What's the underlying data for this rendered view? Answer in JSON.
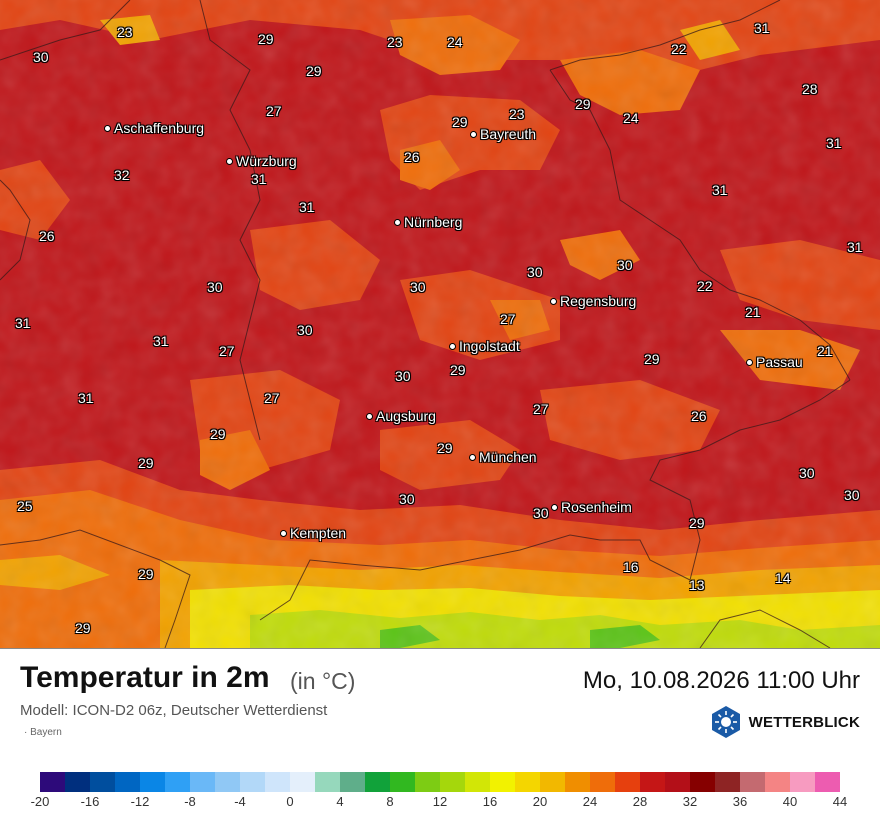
{
  "header": {
    "title": "Temperatur in 2m",
    "unit": "(in °C)",
    "datetime": "Mo, 10.08.2026 11:00 Uhr",
    "model": "Modell: ICON-D2 06z, Deutscher Wetterdienst",
    "region": "· Bayern"
  },
  "brand": {
    "name": "WETTERBLICK",
    "logo_icon": "sun-snowflake-hexagon-icon",
    "color": "#1a5aa6"
  },
  "map": {
    "cities": [
      {
        "id": "aschaffenburg",
        "name": "Aschaffenburg"
      },
      {
        "id": "wuerzburg",
        "name": "Würzburg"
      },
      {
        "id": "bayreuth",
        "name": "Bayreuth"
      },
      {
        "id": "nuernberg",
        "name": "Nürnberg"
      },
      {
        "id": "regensburg",
        "name": "Regensburg"
      },
      {
        "id": "ingolstadt",
        "name": "Ingolstadt"
      },
      {
        "id": "passau",
        "name": "Passau"
      },
      {
        "id": "augsburg",
        "name": "Augsburg"
      },
      {
        "id": "muenchen",
        "name": "München"
      },
      {
        "id": "rosenheim",
        "name": "Rosenheim"
      },
      {
        "id": "kempten",
        "name": "Kempten"
      }
    ],
    "temperatures": [
      "23",
      "29",
      "23",
      "24",
      "31",
      "30",
      "22",
      "29",
      "27",
      "28",
      "23",
      "29",
      "29",
      "24",
      "31",
      "26",
      "32",
      "31",
      "31",
      "26",
      "31",
      "31",
      "30",
      "30",
      "30",
      "22",
      "21",
      "31",
      "30",
      "27",
      "31",
      "27",
      "21",
      "29",
      "29",
      "30",
      "31",
      "27",
      "27",
      "26",
      "29",
      "29",
      "29",
      "30",
      "30",
      "30",
      "25",
      "29",
      "29",
      "16",
      "14",
      "13",
      "29"
    ]
  },
  "legend": {
    "colors": [
      "#2d0a7a",
      "#002f7e",
      "#004e9e",
      "#0066c2",
      "#0a86e6",
      "#2fa0f5",
      "#6ab8f7",
      "#90c8f5",
      "#b2d8f8",
      "#cfe5fb",
      "#e4effb",
      "#96d8bc",
      "#5fae8a",
      "#11a23a",
      "#31b820",
      "#7dcc14",
      "#a5d70c",
      "#d2e606",
      "#f2f200",
      "#f4d600",
      "#f2b800",
      "#f08e00",
      "#ef6d0a",
      "#e6400e",
      "#c51616",
      "#b30f18",
      "#860000",
      "#8e2424",
      "#c46a70",
      "#f48484",
      "#f79bc0",
      "#ed5cb0"
    ],
    "ticks": [
      "-20",
      "-16",
      "-12",
      "-8",
      "-4",
      "0",
      "4",
      "8",
      "12",
      "16",
      "20",
      "24",
      "28",
      "32",
      "36",
      "40",
      "44"
    ]
  }
}
